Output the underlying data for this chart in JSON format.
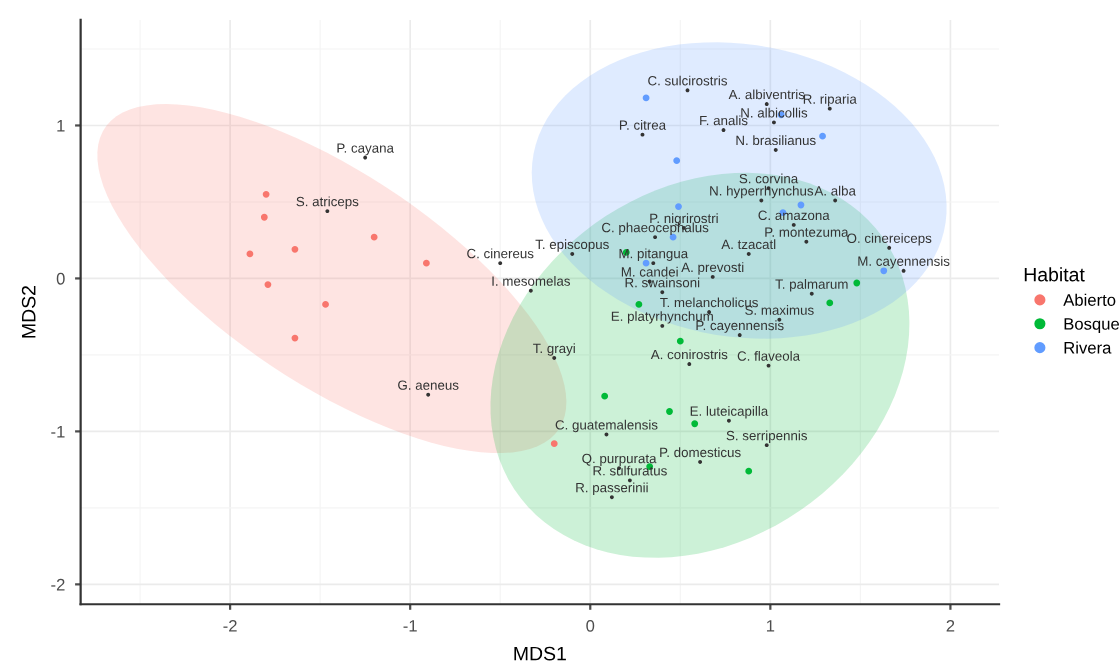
{
  "chart_data": {
    "type": "scatter",
    "xlabel": "MDS1",
    "ylabel": "MDS2",
    "legend_title": "Habitat",
    "legend": "right",
    "grid": true,
    "marker": "circle",
    "xlim": [
      -2.83,
      2.27
    ],
    "ylim": [
      -2.13,
      1.69
    ],
    "xticks": [
      -2,
      -1,
      0,
      1,
      2
    ],
    "yticks": [
      -2,
      -1,
      0,
      1
    ],
    "series": [
      {
        "name": "Abierto",
        "color": "#f8766d",
        "x": [
          -1.8,
          -1.81,
          -1.2,
          -0.91,
          -1.89,
          -1.64,
          -1.79,
          -1.47,
          -1.64,
          -0.2
        ],
        "values": [
          0.55,
          0.4,
          0.27,
          0.1,
          0.16,
          0.19,
          -0.04,
          -0.17,
          -0.39,
          -1.08
        ]
      },
      {
        "name": "Bosque",
        "color": "#00ba38",
        "x": [
          0.2,
          1.48,
          1.33,
          0.27,
          0.5,
          0.08,
          0.44,
          0.58,
          0.33,
          0.88
        ],
        "values": [
          0.17,
          -0.03,
          -0.16,
          -0.17,
          -0.41,
          -0.77,
          -0.87,
          -0.95,
          -1.23,
          -1.26
        ]
      },
      {
        "name": "Rivera",
        "color": "#619cff",
        "x": [
          0.31,
          1.06,
          1.29,
          0.48,
          0.49,
          1.07,
          1.17,
          0.31,
          1.63,
          0.46
        ],
        "values": [
          1.18,
          1.07,
          0.93,
          0.77,
          0.47,
          0.43,
          0.48,
          0.1,
          0.05,
          0.27
        ]
      },
      {
        "color": "#333333",
        "x": [
          -1.25,
          -1.46,
          -0.5,
          -0.9,
          0.54,
          0.98,
          1.33,
          1.02,
          0.29,
          0.74,
          1.03,
          0.99,
          0.95,
          1.36,
          0.52,
          0.36,
          1.13,
          1.2,
          1.66,
          -0.1,
          0.35,
          0.88,
          1.74,
          0.33,
          0.68,
          0.4,
          1.23,
          -0.33,
          0.66,
          1.05,
          0.4,
          0.83,
          -0.2,
          0.55,
          0.99,
          0.77,
          0.09,
          0.98,
          0.61,
          0.16,
          0.22,
          0.12
        ],
        "values": [
          0.79,
          0.44,
          0.1,
          -0.76,
          1.23,
          1.14,
          1.11,
          1.02,
          0.94,
          0.97,
          0.84,
          0.59,
          0.51,
          0.51,
          0.33,
          0.27,
          0.35,
          0.24,
          0.2,
          0.16,
          0.1,
          0.16,
          0.05,
          -0.02,
          0.01,
          -0.09,
          -0.1,
          -0.08,
          -0.22,
          -0.27,
          -0.31,
          -0.37,
          -0.52,
          -0.56,
          -0.57,
          -0.93,
          -1.02,
          -1.09,
          -1.2,
          -1.24,
          -1.32,
          -1.43
        ],
        "value_labels": [
          "P. cayana",
          "S. atriceps",
          "C. cinereus",
          "G. aeneus",
          "C. sulcirostris",
          "A. albiventris",
          "R. riparia",
          "N. albicollis",
          "P. citrea",
          "F. analis",
          "N. brasilianus",
          "S. corvina",
          "N. hyperrhynchus",
          "A. alba",
          "P. nigrirostri",
          "C. phaeocephalus",
          "C. amazona",
          "P. montezuma",
          "O. cinereiceps",
          "T. episcopus",
          "M. pitangua",
          "A. tzacatl",
          "M. cayennensis",
          "M. candei",
          "A. prevosti",
          "R. swainsoni",
          "T. palmarum",
          "I. mesomelas",
          "T. melancholicus",
          "S. maximus",
          "E. platyrhynchum",
          "P. cayennensis",
          "T. grayi",
          "A. conirostris",
          "C. flaveola",
          "E. luteicapilla",
          "C. guatemalensis",
          "S. serripennis",
          "P. domesticus",
          "Q. purpurata",
          "R. sulfuratus",
          "R. passerinii"
        ]
      }
    ]
  }
}
